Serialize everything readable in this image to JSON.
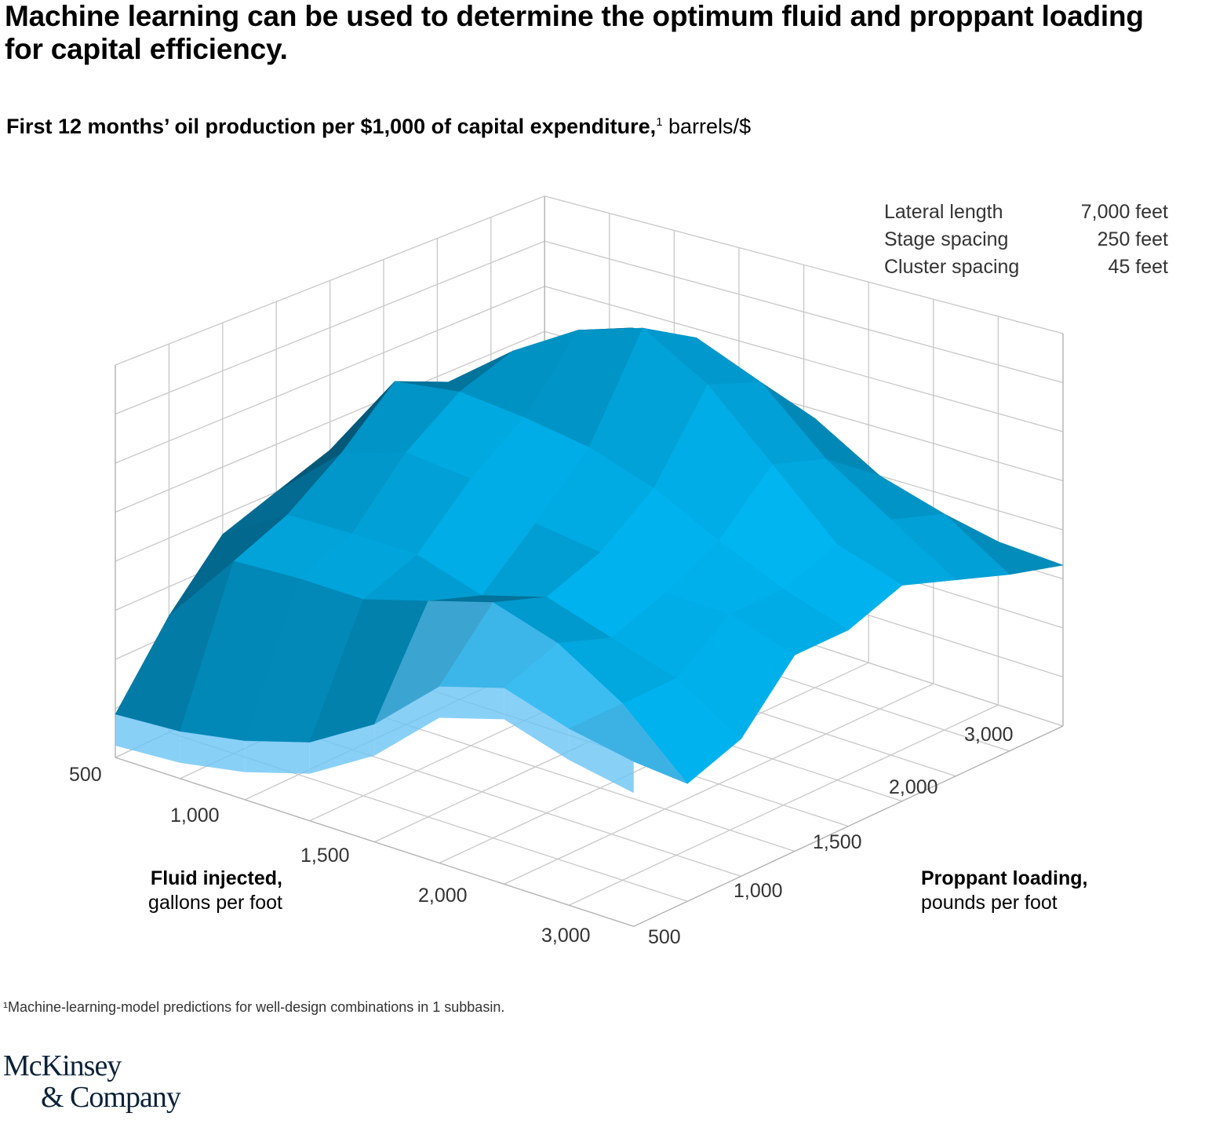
{
  "title": "Machine learning can be used to determine the optimum fluid and proppant loading for capital efficiency.",
  "subtitle": {
    "bold": "First 12 months’ oil production per $1,000 of capital expenditure,",
    "footnote_mark": "1",
    "unit": " barrels/$"
  },
  "specs": [
    {
      "label": "Lateral length",
      "value": "7,000 feet"
    },
    {
      "label": "Stage spacing",
      "value": "250 feet"
    },
    {
      "label": "Cluster spacing",
      "value": "45 feet"
    }
  ],
  "chart_data": {
    "type": "surface3d",
    "x_axis": {
      "label_bold": "Fluid injected,",
      "label_unit": "gallons per foot",
      "tick_labels": [
        "500",
        "1,000",
        "1,500",
        "2,000",
        "3,000"
      ]
    },
    "y_axis": {
      "label_bold": "Proppant loading,",
      "label_unit": "pounds per foot",
      "tick_labels": [
        "500",
        "1,000",
        "1,500",
        "2,000",
        "3,000"
      ]
    },
    "z_axis": {
      "tick_labels": [],
      "note": ""
    },
    "grid": true,
    "colors": {
      "bright": "#00b6f2",
      "dark": "#04506e",
      "front_light": "#6cc4f5",
      "grid": "#c8c8c8",
      "axis": "#b4b4b4"
    },
    "relative_heights": [
      [
        0.11,
        0.3,
        0.45,
        0.5,
        0.55,
        0.55,
        0.5,
        0.5,
        0.45
      ],
      [
        0.12,
        0.49,
        0.55,
        0.65,
        0.78,
        0.72,
        0.65,
        0.6,
        0.55
      ],
      [
        0.15,
        0.5,
        0.55,
        0.7,
        0.8,
        0.85,
        0.8,
        0.7,
        0.6
      ],
      [
        0.2,
        0.5,
        0.55,
        0.68,
        0.78,
        0.95,
        0.9,
        0.75,
        0.6
      ],
      [
        0.3,
        0.55,
        0.5,
        0.62,
        0.75,
        1.0,
        0.92,
        0.75,
        0.55
      ],
      [
        0.45,
        0.6,
        0.55,
        0.6,
        0.7,
        0.9,
        0.85,
        0.7,
        0.5
      ],
      [
        0.5,
        0.55,
        0.5,
        0.55,
        0.62,
        0.75,
        0.7,
        0.6,
        0.45
      ],
      [
        0.45,
        0.45,
        0.45,
        0.55,
        0.55,
        0.6,
        0.6,
        0.55,
        0.42
      ],
      [
        0.42,
        0.3,
        0.35,
        0.5,
        0.5,
        0.55,
        0.5,
        0.45,
        0.41
      ]
    ]
  },
  "footnote": "¹Machine-learning-model predictions for well-design combinations in 1 subbasin.",
  "logo": {
    "line1": "McKinsey",
    "line2": "& Company"
  }
}
